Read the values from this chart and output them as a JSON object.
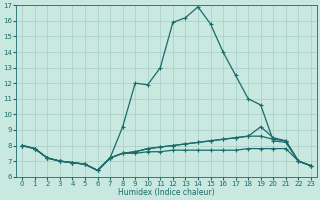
{
  "xlabel": "Humidex (Indice chaleur)",
  "bg_color": "#c8e8e0",
  "grid_color": "#a8ccc8",
  "line_color": "#1a6b6b",
  "xlim": [
    -0.5,
    23.5
  ],
  "ylim": [
    6,
    17
  ],
  "yticks": [
    6,
    7,
    8,
    9,
    10,
    11,
    12,
    13,
    14,
    15,
    16,
    17
  ],
  "xticks": [
    0,
    1,
    2,
    3,
    4,
    5,
    6,
    7,
    8,
    9,
    10,
    11,
    12,
    13,
    14,
    15,
    16,
    17,
    18,
    19,
    20,
    21,
    22,
    23
  ],
  "line_main_x": [
    0,
    1,
    2,
    3,
    4,
    5,
    6,
    7,
    8,
    9,
    10,
    11,
    12,
    13,
    14,
    15,
    16,
    17,
    18,
    19,
    20,
    21,
    22,
    23
  ],
  "line_main_y": [
    8.0,
    7.8,
    7.2,
    7.0,
    6.9,
    6.8,
    6.4,
    7.2,
    9.2,
    12.0,
    11.9,
    13.0,
    15.9,
    16.2,
    16.9,
    15.8,
    14.0,
    12.5,
    11.0,
    10.6,
    8.3,
    8.2,
    7.0,
    6.7
  ],
  "line_diag1_x": [
    0,
    1,
    2,
    3,
    4,
    5,
    6,
    7,
    8,
    9,
    10,
    11,
    12,
    13,
    14,
    15,
    16,
    17,
    18,
    19,
    20,
    21,
    22,
    23
  ],
  "line_diag1_y": [
    8.0,
    7.8,
    7.2,
    7.0,
    6.9,
    6.8,
    6.4,
    7.2,
    7.5,
    7.6,
    7.8,
    7.9,
    8.0,
    8.1,
    8.2,
    8.3,
    8.4,
    8.5,
    8.6,
    9.2,
    8.5,
    8.3,
    7.0,
    6.7
  ],
  "line_diag2_x": [
    0,
    1,
    2,
    3,
    4,
    5,
    6,
    7,
    8,
    9,
    10,
    11,
    12,
    13,
    14,
    15,
    16,
    17,
    18,
    19,
    20,
    21,
    22,
    23
  ],
  "line_diag2_y": [
    8.0,
    7.8,
    7.2,
    7.0,
    6.9,
    6.8,
    6.4,
    7.2,
    7.5,
    7.6,
    7.8,
    7.9,
    8.0,
    8.1,
    8.2,
    8.3,
    8.4,
    8.5,
    8.6,
    8.6,
    8.4,
    8.3,
    7.0,
    6.7
  ],
  "line_flat_x": [
    0,
    1,
    2,
    3,
    4,
    5,
    6,
    7,
    8,
    9,
    10,
    11,
    12,
    13,
    14,
    15,
    16,
    17,
    18,
    19,
    20,
    21,
    22,
    23
  ],
  "line_flat_y": [
    8.0,
    7.8,
    7.2,
    7.0,
    6.9,
    6.8,
    6.4,
    7.2,
    7.5,
    7.5,
    7.6,
    7.6,
    7.7,
    7.7,
    7.7,
    7.7,
    7.7,
    7.7,
    7.8,
    7.8,
    7.8,
    7.8,
    7.0,
    6.7
  ]
}
